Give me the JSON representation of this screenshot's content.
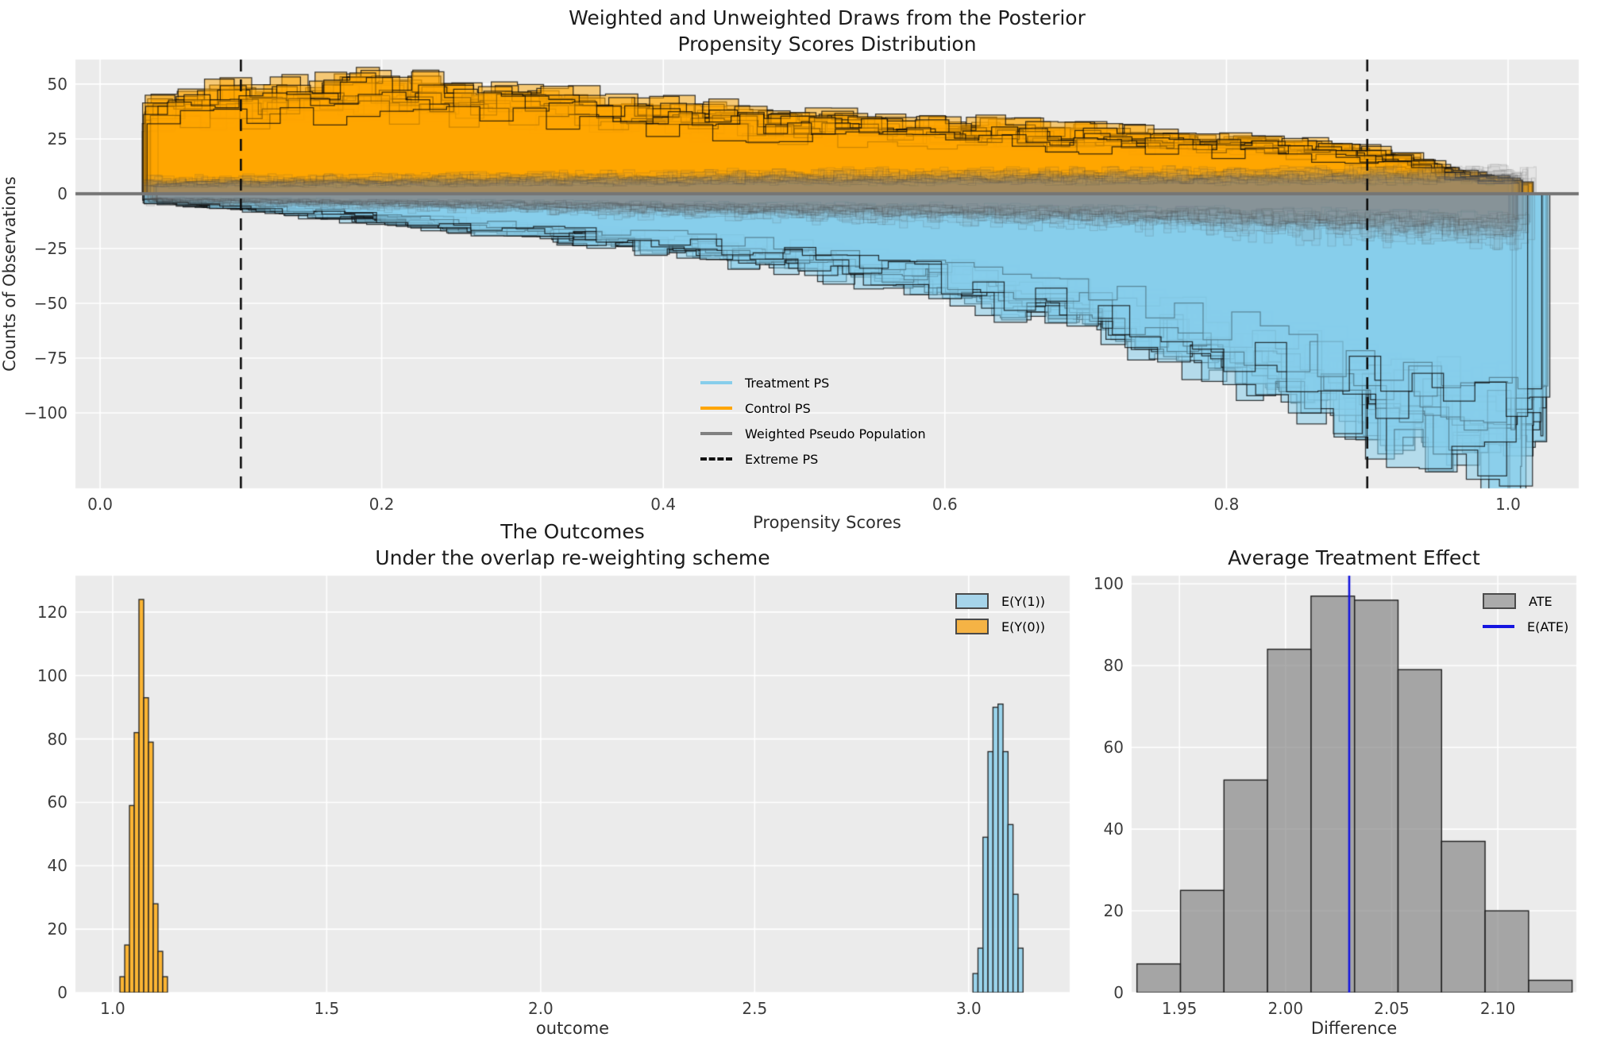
{
  "figure": {
    "bg": "#ffffff",
    "axes_bg": "#EBEBEB",
    "grid_color": "#ffffff",
    "tick_color": "#3c3c3c",
    "title_color": "#1c1c1c"
  },
  "chart_data": {
    "charts": [
      {
        "id": "propensity",
        "type": "overlaid-posterior-histograms-mirrored",
        "title_line1": "Weighted and Unweighted Draws from the Posterior",
        "title_line2": "Propensity Scores Distribution",
        "xlabel": "Propensity Scores",
        "ylabel": "Counts of Observations",
        "xlim": [
          -0.0175,
          1.0502
        ],
        "ylim": [
          -134.4,
          61.2
        ],
        "x_ticks": [
          {
            "v": 0.0,
            "label": "0.0"
          },
          {
            "v": 0.2,
            "label": "0.2"
          },
          {
            "v": 0.4,
            "label": "0.4"
          },
          {
            "v": 0.6,
            "label": "0.6"
          },
          {
            "v": 0.8,
            "label": "0.8"
          },
          {
            "v": 1.0,
            "label": "1.0"
          }
        ],
        "y_ticks": [
          {
            "v": 50,
            "label": "50"
          },
          {
            "v": 25,
            "label": "25"
          },
          {
            "v": 0,
            "label": "0"
          },
          {
            "v": -25,
            "label": "−25"
          },
          {
            "v": -50,
            "label": "−50"
          },
          {
            "v": -75,
            "label": "−75"
          },
          {
            "v": -100,
            "label": "−100"
          }
        ],
        "extreme_ps_lines": [
          0.1,
          0.9
        ],
        "extreme_ps_color": "#0d0d0d",
        "zero_line_color": "#757575",
        "n_posterior_draws": 34,
        "seed": 11,
        "layers": [
          {
            "name": "Control PS",
            "side": 1,
            "n": 34,
            "bw_min": 0.016,
            "bw_max": 0.024,
            "start_min": 0.03,
            "start_jit": 0.012,
            "end_base": 1.0,
            "end_jit": 0.018,
            "mult_jit": 0.3,
            "bin_noise": 0.35,
            "lw": 1.25,
            "fill": "rgba(255,165,0,0.50)",
            "stroke": "rgba(10,10,10,0.80)",
            "envelope": [
              [
                0.03,
                36
              ],
              [
                0.08,
                39
              ],
              [
                0.14,
                42
              ],
              [
                0.2,
                45
              ],
              [
                0.26,
                41
              ],
              [
                0.32,
                38
              ],
              [
                0.4,
                34
              ],
              [
                0.5,
                30
              ],
              [
                0.6,
                28
              ],
              [
                0.7,
                25
              ],
              [
                0.8,
                22
              ],
              [
                0.88,
                19
              ],
              [
                0.93,
                14
              ],
              [
                0.97,
                8
              ],
              [
                1.02,
                4
              ]
            ]
          },
          {
            "name": "Treatment PS",
            "side": -1,
            "n": 34,
            "bw_min": 0.016,
            "bw_max": 0.024,
            "start_min": 0.03,
            "start_jit": 0.012,
            "end_base": 1.0,
            "end_jit": 0.03,
            "mult_jit": 0.3,
            "bin_noise": 0.35,
            "lw": 1.25,
            "fill": "rgba(135,206,235,0.55)",
            "stroke": "rgba(10,10,10,0.80)",
            "envelope": [
              [
                0.03,
                3
              ],
              [
                0.1,
                6
              ],
              [
                0.2,
                11
              ],
              [
                0.3,
                16
              ],
              [
                0.4,
                22
              ],
              [
                0.5,
                29
              ],
              [
                0.6,
                38
              ],
              [
                0.7,
                52
              ],
              [
                0.8,
                68
              ],
              [
                0.88,
                84
              ],
              [
                0.93,
                96
              ],
              [
                0.97,
                103
              ],
              [
                1.03,
                106
              ]
            ]
          },
          {
            "name": "Weighted Pseudo Population (above)",
            "side": 1,
            "n": 22,
            "bw_min": 0.005,
            "bw_max": 0.01,
            "start_min": 0.03,
            "start_jit": 0.01,
            "end_base": 1.0,
            "end_jit": 0.02,
            "mult_jit": 0.8,
            "bin_noise": 0.6,
            "lw": 1.1,
            "fill": "rgba(128,128,128,0.06)",
            "stroke": "rgba(60,60,60,0.16)",
            "envelope": [
              [
                0.03,
                5
              ],
              [
                0.5,
                7
              ],
              [
                1.0,
                8
              ]
            ]
          },
          {
            "name": "Weighted Pseudo Population (below)",
            "side": -1,
            "n": 24,
            "bw_min": 0.005,
            "bw_max": 0.01,
            "start_min": 0.03,
            "start_jit": 0.01,
            "end_base": 1.0,
            "end_jit": 0.02,
            "mult_jit": 0.8,
            "bin_noise": 0.6,
            "lw": 1.1,
            "fill": "rgba(128,128,128,0.06)",
            "stroke": "rgba(60,60,60,0.16)",
            "envelope": [
              [
                0.03,
                3
              ],
              [
                0.4,
                7
              ],
              [
                0.7,
                10
              ],
              [
                0.9,
                14
              ],
              [
                1.03,
                17
              ]
            ]
          }
        ],
        "legend": [
          {
            "label": "Treatment PS",
            "swatch": "line",
            "color": "#87CEEB"
          },
          {
            "label": "Control PS",
            "swatch": "line",
            "color": "#FFA500"
          },
          {
            "label": "Weighted Pseudo Population",
            "swatch": "line",
            "color": "#808080"
          },
          {
            "label": "Extreme PS",
            "swatch": "dash",
            "color": "#111111"
          }
        ]
      },
      {
        "id": "outcomes",
        "type": "histogram",
        "title_line1": "The Outcomes",
        "title_line2": "Under the overlap re-weighting scheme",
        "xlabel": "outcome",
        "xlim": [
          0.913,
          3.236
        ],
        "ylim": [
          0,
          131.5
        ],
        "x_ticks": [
          {
            "v": 1.0,
            "label": "1.0"
          },
          {
            "v": 1.5,
            "label": "1.5"
          },
          {
            "v": 2.0,
            "label": "2.0"
          },
          {
            "v": 2.5,
            "label": "2.5"
          },
          {
            "v": 3.0,
            "label": "3.0"
          }
        ],
        "y_ticks": [
          {
            "v": 0,
            "label": "0"
          },
          {
            "v": 20,
            "label": "20"
          },
          {
            "v": 40,
            "label": "40"
          },
          {
            "v": 60,
            "label": "60"
          },
          {
            "v": 80,
            "label": "80"
          },
          {
            "v": 100,
            "label": "100"
          },
          {
            "v": 120,
            "label": "120"
          }
        ],
        "series": [
          {
            "name": "E(Y(0))",
            "bin_start": 1.017,
            "bin_width": 0.0111,
            "counts": [
              5,
              15,
              59,
              82,
              124,
              93,
              79,
              28,
              13,
              5
            ],
            "fill": "rgba(255,165,0,0.78)",
            "edge": "#2b2b2b"
          },
          {
            "name": "E(Y(1))",
            "bin_start": 3.01,
            "bin_width": 0.0117,
            "counts": [
              6,
              14,
              49,
              76,
              90,
              91,
              76,
              53,
              31,
              14
            ],
            "fill": "rgba(135,206,235,0.82)",
            "edge": "#2b2b2b"
          }
        ],
        "legend": [
          {
            "label": "E(Y(1))",
            "swatch": "patch",
            "color": "#A6D4EA"
          },
          {
            "label": "E(Y(0))",
            "swatch": "patch",
            "color": "#F5B345"
          }
        ]
      },
      {
        "id": "ate",
        "type": "histogram",
        "title_line1": "Average Treatment Effect",
        "xlabel": "Difference",
        "xlim": [
          1.9275,
          2.137
        ],
        "ylim": [
          0,
          102
        ],
        "x_ticks": [
          {
            "v": 1.95,
            "label": "1.95"
          },
          {
            "v": 2.0,
            "label": "2.00"
          },
          {
            "v": 2.05,
            "label": "2.05"
          },
          {
            "v": 2.1,
            "label": "2.10"
          }
        ],
        "y_ticks": [
          {
            "v": 0,
            "label": "0"
          },
          {
            "v": 20,
            "label": "20"
          },
          {
            "v": 40,
            "label": "40"
          },
          {
            "v": 60,
            "label": "60"
          },
          {
            "v": 80,
            "label": "80"
          },
          {
            "v": 100,
            "label": "100"
          }
        ],
        "series": [
          {
            "name": "ATE",
            "bin_start": 1.93,
            "bin_width": 0.0205,
            "counts": [
              7,
              25,
              52,
              84,
              97,
              96,
              79,
              37,
              20,
              3
            ],
            "fill": "rgba(128,128,128,0.65)",
            "edge": "#1f1f1f"
          }
        ],
        "e_ate": 2.03,
        "e_ate_color": "#1515E0",
        "legend": [
          {
            "label": "ATE",
            "swatch": "patch",
            "color": "#ABABAB"
          },
          {
            "label": "E(ATE)",
            "swatch": "line",
            "color": "#1515E0"
          }
        ]
      }
    ]
  }
}
